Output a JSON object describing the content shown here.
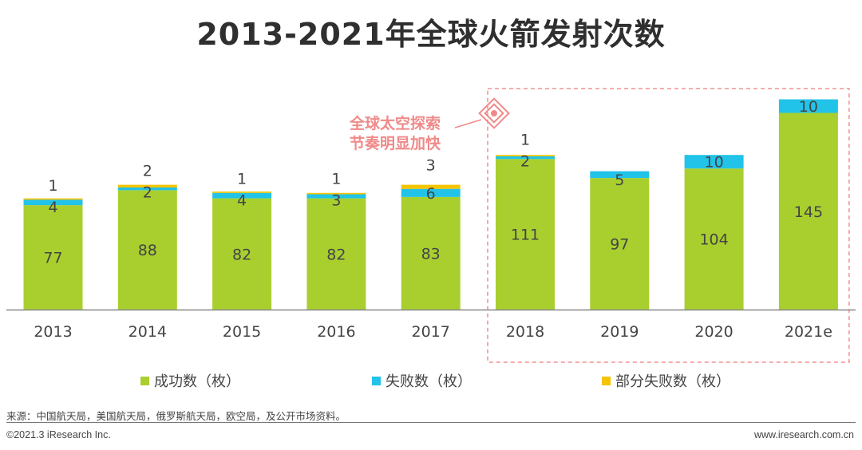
{
  "title": "2013-2021年全球火箭发射次数",
  "callout": {
    "line1": "全球太空探索",
    "line2": "节奏明显加快"
  },
  "chart_data": {
    "type": "bar",
    "stacked": true,
    "categories": [
      "2013",
      "2014",
      "2015",
      "2016",
      "2017",
      "2018",
      "2019",
      "2020",
      "2021e"
    ],
    "series": [
      {
        "name": "成功数（枚）",
        "color": "#a9cf2f",
        "values": [
          77,
          88,
          82,
          82,
          83,
          111,
          97,
          104,
          145
        ]
      },
      {
        "name": "失败数（枚）",
        "color": "#22c3e8",
        "values": [
          4,
          2,
          4,
          3,
          6,
          2,
          5,
          10,
          10
        ]
      },
      {
        "name": "部分失败数（枚）",
        "color": "#f5c400",
        "values": [
          1,
          2,
          1,
          1,
          3,
          1,
          0,
          0,
          0
        ]
      }
    ],
    "labels": {
      "failure": [
        "4",
        "2",
        "4",
        "3",
        "6",
        "2",
        "5",
        "10",
        "10"
      ],
      "partial": [
        "1",
        "2",
        "1",
        "1",
        "3",
        "1",
        "",
        "",
        ""
      ]
    },
    "highlight_categories": [
      "2018",
      "2019",
      "2020",
      "2021e"
    ],
    "ylim": [
      0,
      160
    ],
    "grid": false,
    "legend_position": "bottom"
  },
  "legend": {
    "success": "成功数（枚）",
    "failure": "失败数（枚）",
    "partial": "部分失败数（枚）"
  },
  "footer": {
    "source": "来源：中国航天局，美国航天局，俄罗斯航天局，欧空局，及公开市场资料。",
    "copyright": "©2021.3 iResearch Inc.",
    "website": "www.iresearch.com.cn"
  }
}
